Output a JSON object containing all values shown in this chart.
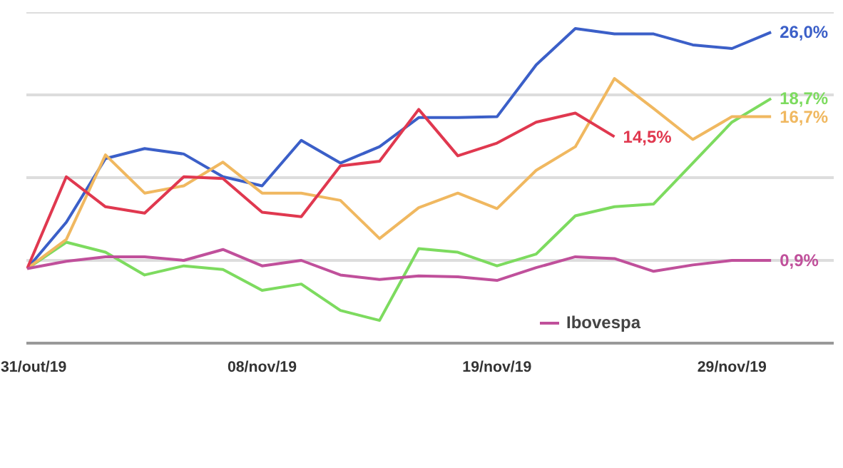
{
  "chart_data": {
    "type": "line",
    "categories": [
      "31/out/19",
      null,
      null,
      null,
      null,
      null,
      "08/nov/19",
      null,
      null,
      null,
      null,
      null,
      "19/nov/19",
      null,
      null,
      null,
      null,
      null,
      "29/nov/19",
      null
    ],
    "series": [
      {
        "color": "#3b5fc8",
        "values": [
          0,
          5.1,
          12.1,
          13.2,
          12.6,
          10.1,
          9.1,
          14.1,
          11.6,
          13.4,
          16.6,
          16.6,
          16.7,
          22.4,
          26.4,
          25.8,
          25.8,
          24.6,
          24.2,
          26.0
        ],
        "value_labels": [
          null,
          null,
          null,
          null,
          null,
          null,
          null,
          null,
          null,
          null,
          null,
          null,
          null,
          null,
          null,
          null,
          null,
          null,
          null,
          "26,0%"
        ]
      },
      {
        "color": "#7ddb5f",
        "values": [
          0,
          2.9,
          1.8,
          -0.7,
          0.3,
          -0.1,
          -2.4,
          -1.7,
          -4.6,
          -5.7,
          2.2,
          1.8,
          0.3,
          1.6,
          5.8,
          6.8,
          7.1,
          11.6,
          16.1,
          18.7
        ],
        "value_labels": [
          null,
          null,
          null,
          null,
          null,
          null,
          null,
          null,
          null,
          null,
          null,
          null,
          null,
          null,
          null,
          null,
          null,
          null,
          null,
          "18,7%"
        ]
      },
      {
        "color": "#f0b860",
        "values": [
          0,
          3.2,
          12.5,
          8.3,
          9.1,
          11.7,
          8.3,
          8.3,
          7.5,
          3.3,
          6.7,
          8.3,
          6.6,
          10.8,
          13.4,
          20.9,
          17.6,
          14.2,
          16.7,
          16.7
        ],
        "value_labels": [
          null,
          null,
          null,
          null,
          null,
          null,
          null,
          null,
          null,
          null,
          null,
          null,
          null,
          null,
          null,
          null,
          null,
          null,
          null,
          "16,7%"
        ]
      },
      {
        "color": "#e0384f",
        "values": [
          0,
          10.1,
          6.8,
          6.1,
          10.1,
          9.9,
          6.2,
          5.7,
          11.3,
          11.8,
          17.5,
          12.4,
          13.8,
          16.1,
          17.1,
          14.5,
          null,
          null,
          null,
          null
        ],
        "value_labels": [
          null,
          null,
          null,
          null,
          null,
          null,
          null,
          null,
          null,
          null,
          null,
          null,
          null,
          null,
          null,
          "14,5%",
          null,
          null,
          null,
          null
        ]
      },
      {
        "name": "Ibovespa",
        "color": "#c0509b",
        "values": [
          0,
          0.8,
          1.3,
          1.3,
          0.9,
          2.1,
          0.3,
          0.9,
          -0.7,
          -1.2,
          -0.8,
          -0.9,
          -1.3,
          0.1,
          1.3,
          1.1,
          -0.3,
          0.4,
          0.9,
          0.9
        ],
        "value_labels": [
          null,
          null,
          null,
          null,
          null,
          null,
          null,
          null,
          null,
          null,
          null,
          null,
          null,
          null,
          null,
          null,
          null,
          null,
          null,
          "0,9%"
        ]
      }
    ],
    "ylim": [
      -8.2,
      28.2
    ],
    "yticks": [
      {
        "value": 0.9,
        "label": null
      },
      {
        "value": 10.0,
        "label": null
      },
      {
        "value": 19.1,
        "label": null
      },
      {
        "value": 28.2,
        "label": null
      }
    ],
    "grid": "y",
    "tick_labels": "x",
    "legend": "bottom",
    "line_style": "solid"
  }
}
